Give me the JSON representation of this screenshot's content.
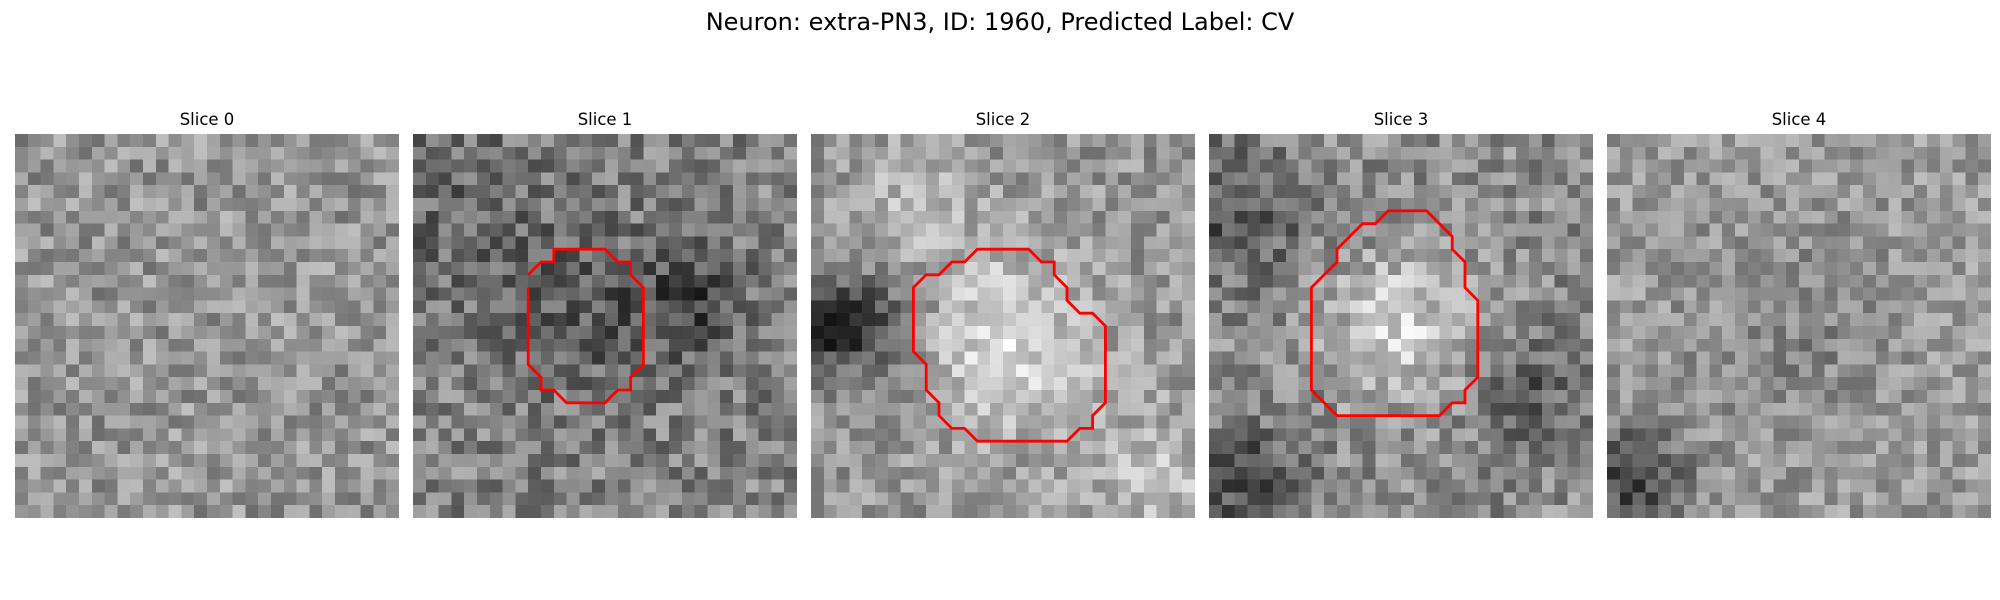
{
  "figure": {
    "title": "Neuron: extra-PN3, ID: 1960, Predicted Label: CV",
    "grid_size": 30,
    "contour_color": "#ff0000"
  },
  "panels": [
    {
      "title": "Slice 0",
      "contour": null,
      "style": {
        "base": 150,
        "noise": 85,
        "blobs": []
      }
    },
    {
      "title": "Slice 1",
      "contour": [
        [
          9,
          11
        ],
        [
          10,
          10
        ],
        [
          11,
          10
        ],
        [
          11,
          9
        ],
        [
          12,
          9
        ],
        [
          15,
          9
        ],
        [
          16,
          10
        ],
        [
          17,
          10
        ],
        [
          17,
          11
        ],
        [
          18,
          12
        ],
        [
          18,
          18
        ],
        [
          17,
          19
        ],
        [
          17,
          20
        ],
        [
          16,
          20
        ],
        [
          15,
          21
        ],
        [
          12,
          21
        ],
        [
          11,
          20
        ],
        [
          10,
          20
        ],
        [
          10,
          19
        ],
        [
          9,
          18
        ],
        [
          9,
          12
        ]
      ],
      "style": {
        "base": 130,
        "noise": 95,
        "blobs": [
          [
            14,
            14,
            4.5,
            -40
          ],
          [
            22,
            13,
            3,
            -55
          ],
          [
            3,
            6,
            6,
            -25
          ]
        ]
      }
    },
    {
      "title": "Slice 2",
      "contour": [
        [
          8,
          13
        ],
        [
          8,
          12
        ],
        [
          9,
          11
        ],
        [
          10,
          11
        ],
        [
          11,
          10
        ],
        [
          12,
          10
        ],
        [
          13,
          9
        ],
        [
          17,
          9
        ],
        [
          18,
          10
        ],
        [
          19,
          10
        ],
        [
          19,
          11
        ],
        [
          20,
          12
        ],
        [
          20,
          13
        ],
        [
          21,
          14
        ],
        [
          22,
          14
        ],
        [
          23,
          15
        ],
        [
          23,
          16
        ],
        [
          23,
          21
        ],
        [
          22,
          22
        ],
        [
          22,
          23
        ],
        [
          21,
          23
        ],
        [
          20,
          24
        ],
        [
          13,
          24
        ],
        [
          12,
          23
        ],
        [
          11,
          23
        ],
        [
          10,
          22
        ],
        [
          10,
          21
        ],
        [
          9,
          20
        ],
        [
          9,
          18
        ],
        [
          8,
          17
        ],
        [
          8,
          13
        ]
      ],
      "style": {
        "base": 150,
        "noise": 80,
        "blobs": [
          [
            15,
            16,
            5,
            70
          ],
          [
            2,
            15,
            2.5,
            -100
          ],
          [
            6,
            15,
            3,
            -50
          ],
          [
            27,
            27,
            4,
            40
          ],
          [
            8,
            5,
            3,
            35
          ]
        ]
      }
    },
    {
      "title": "Slice 3",
      "contour": [
        [
          8,
          13
        ],
        [
          8,
          12
        ],
        [
          9,
          11
        ],
        [
          10,
          10
        ],
        [
          10,
          9
        ],
        [
          11,
          8
        ],
        [
          12,
          7
        ],
        [
          13,
          7
        ],
        [
          14,
          6
        ],
        [
          17,
          6
        ],
        [
          18,
          7
        ],
        [
          19,
          8
        ],
        [
          19,
          9
        ],
        [
          20,
          10
        ],
        [
          20,
          12
        ],
        [
          21,
          13
        ],
        [
          21,
          19
        ],
        [
          20,
          20
        ],
        [
          20,
          21
        ],
        [
          19,
          21
        ],
        [
          18,
          22
        ],
        [
          10,
          22
        ],
        [
          9,
          21
        ],
        [
          8,
          20
        ],
        [
          8,
          13
        ]
      ],
      "style": {
        "base": 140,
        "noise": 90,
        "blobs": [
          [
            15,
            15,
            4,
            70
          ],
          [
            2,
            6,
            4,
            -60
          ],
          [
            25,
            20,
            3,
            -50
          ],
          [
            3,
            27,
            3,
            -70
          ]
        ]
      }
    },
    {
      "title": "Slice 4",
      "contour": null,
      "style": {
        "base": 155,
        "noise": 75,
        "blobs": [
          [
            2,
            27,
            3,
            -90
          ],
          [
            15,
            15,
            6,
            -20
          ]
        ]
      }
    }
  ]
}
